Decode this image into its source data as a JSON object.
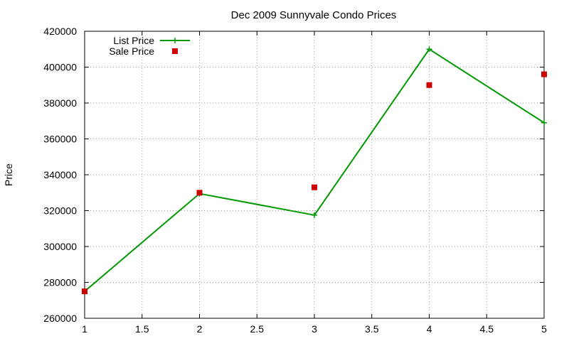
{
  "chart_data": {
    "type": "line",
    "title": "Dec 2009 Sunnyvale Condo Prices",
    "xlabel": "",
    "ylabel": "Price",
    "xlim": [
      1,
      5
    ],
    "ylim": [
      260000,
      420000
    ],
    "x_ticks": [
      "1",
      "1.5",
      "2",
      "2.5",
      "3",
      "3.5",
      "4",
      "4.5",
      "5"
    ],
    "y_ticks": [
      "260000",
      "280000",
      "300000",
      "320000",
      "340000",
      "360000",
      "380000",
      "400000",
      "420000"
    ],
    "grid": true,
    "legend_position": "top-left",
    "series": [
      {
        "name": "List Price",
        "style": "line-with-plus-markers",
        "color": "#009900",
        "x": [
          1,
          2,
          3,
          4,
          5
        ],
        "values": [
          275000,
          329500,
          317500,
          410000,
          369000
        ]
      },
      {
        "name": "Sale Price",
        "style": "square-markers",
        "color": "#cc0000",
        "x": [
          1,
          2,
          3,
          4,
          5
        ],
        "values": [
          275000,
          330000,
          333000,
          390000,
          396000
        ]
      }
    ]
  }
}
